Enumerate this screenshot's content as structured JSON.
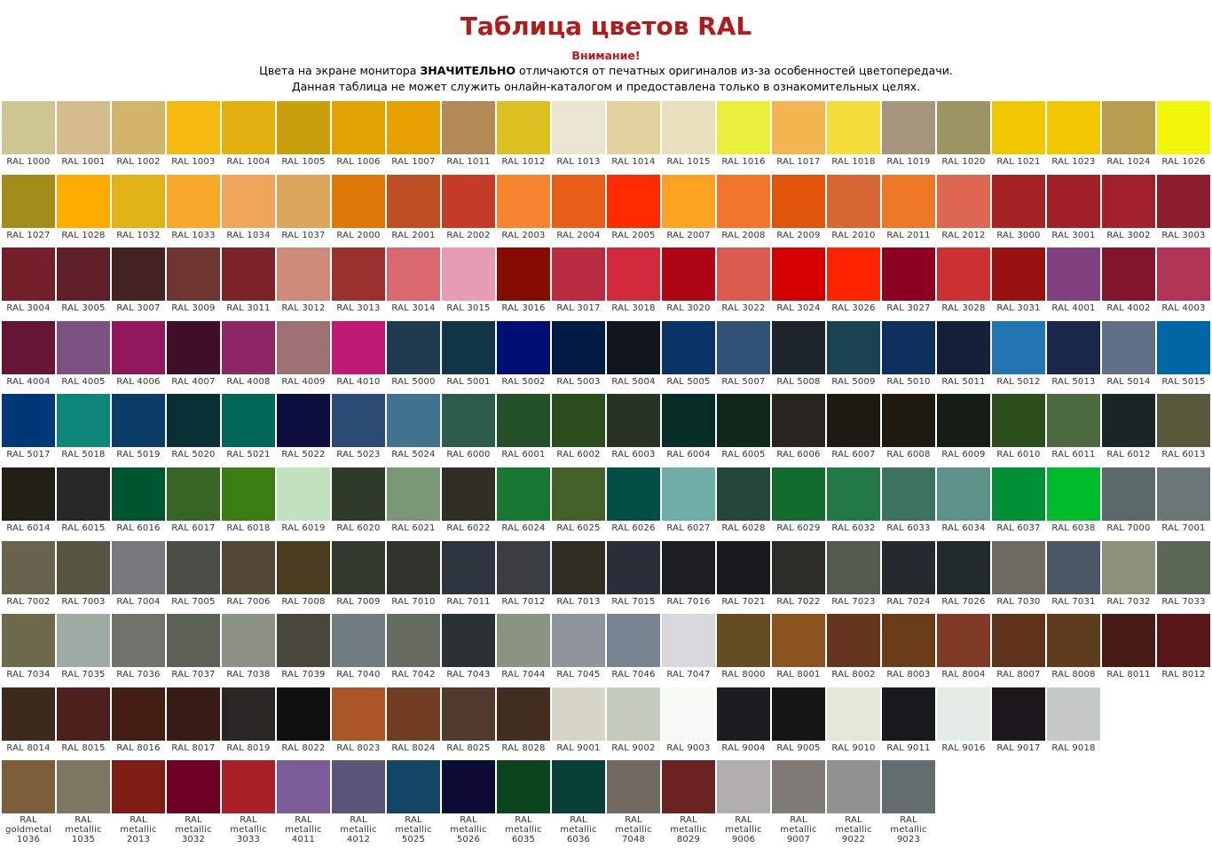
{
  "header": {
    "title": "Таблица цветов RAL",
    "warning": "Внимание!",
    "line1_before": "Цвета на экране монитора ",
    "line1_bold": "ЗНАЧИТЕЛЬНО",
    "line1_after": " отличаются от печатных оригиналов из-за особенностей цветопередачи.",
    "line2": "Данная таблица не может служить онлайн-каталогом и предоставлена только в ознакомительных целях."
  },
  "rows": [
    [
      {
        "code": "RAL 1000",
        "color": "#cdc592"
      },
      {
        "code": "RAL 1001",
        "color": "#d4bc8c"
      },
      {
        "code": "RAL 1002",
        "color": "#d3b46b"
      },
      {
        "code": "RAL 1003",
        "color": "#f6b910"
      },
      {
        "code": "RAL 1004",
        "color": "#e2b00f"
      },
      {
        "code": "RAL 1005",
        "color": "#c99e0b"
      },
      {
        "code": "RAL 1006",
        "color": "#e2a300"
      },
      {
        "code": "RAL 1007",
        "color": "#e8a000"
      },
      {
        "code": "RAL 1011",
        "color": "#b28a56"
      },
      {
        "code": "RAL 1012",
        "color": "#dac020"
      },
      {
        "code": "RAL 1013",
        "color": "#eae5d0"
      },
      {
        "code": "RAL 1014",
        "color": "#e0d19d"
      },
      {
        "code": "RAL 1015",
        "color": "#eadfbd"
      },
      {
        "code": "RAL 1016",
        "color": "#e9ef3a"
      },
      {
        "code": "RAL 1017",
        "color": "#f3b54f"
      },
      {
        "code": "RAL 1018",
        "color": "#f3dd3b"
      },
      {
        "code": "RAL 1019",
        "color": "#a5967d"
      },
      {
        "code": "RAL 1020",
        "color": "#9b9463"
      },
      {
        "code": "RAL 1021",
        "color": "#f1c800"
      },
      {
        "code": "RAL 1023",
        "color": "#f1c700"
      },
      {
        "code": "RAL 1024",
        "color": "#b99d4e"
      },
      {
        "code": "RAL 1026",
        "color": "#f3f60b"
      }
    ],
    [
      {
        "code": "RAL 1027",
        "color": "#a28c1a"
      },
      {
        "code": "RAL 1028",
        "color": "#ffab00"
      },
      {
        "code": "RAL 1032",
        "color": "#e1b216"
      },
      {
        "code": "RAL 1033",
        "color": "#f7a828"
      },
      {
        "code": "RAL 1034",
        "color": "#eda65a"
      },
      {
        "code": "RAL 1037",
        "color": "#dba55a"
      },
      {
        "code": "RAL 2000",
        "color": "#dd7808"
      },
      {
        "code": "RAL 2001",
        "color": "#bf4f23"
      },
      {
        "code": "RAL 2002",
        "color": "#c63b28"
      },
      {
        "code": "RAL 2003",
        "color": "#f6842e"
      },
      {
        "code": "RAL 2004",
        "color": "#e85d17"
      },
      {
        "code": "RAL 2005",
        "color": "#ff2a00"
      },
      {
        "code": "RAL 2007",
        "color": "#fca222"
      },
      {
        "code": "RAL 2008",
        "color": "#f2752c"
      },
      {
        "code": "RAL 2009",
        "color": "#df5409"
      },
      {
        "code": "RAL 2010",
        "color": "#d56631"
      },
      {
        "code": "RAL 2011",
        "color": "#ee7826"
      },
      {
        "code": "RAL 2012",
        "color": "#dc6650"
      },
      {
        "code": "RAL 3000",
        "color": "#a62325"
      },
      {
        "code": "RAL 3001",
        "color": "#a11f27"
      },
      {
        "code": "RAL 3002",
        "color": "#a22029"
      },
      {
        "code": "RAL 3003",
        "color": "#8b1d2d"
      }
    ],
    [
      {
        "code": "RAL 3004",
        "color": "#731e29"
      },
      {
        "code": "RAL 3005",
        "color": "#5e1f28"
      },
      {
        "code": "RAL 3007",
        "color": "#432222"
      },
      {
        "code": "RAL 3009",
        "color": "#6e3530"
      },
      {
        "code": "RAL 3011",
        "color": "#7a2428"
      },
      {
        "code": "RAL 3012",
        "color": "#cb8b78"
      },
      {
        "code": "RAL 3013",
        "color": "#9b312f"
      },
      {
        "code": "RAL 3014",
        "color": "#d9676f"
      },
      {
        "code": "RAL 3015",
        "color": "#e89bb5"
      },
      {
        "code": "RAL 3016",
        "color": "#850c02"
      },
      {
        "code": "RAL 3017",
        "color": "#b92b3e"
      },
      {
        "code": "RAL 3018",
        "color": "#d02a3c"
      },
      {
        "code": "RAL 3020",
        "color": "#ae0614"
      },
      {
        "code": "RAL 3022",
        "color": "#da5b4f"
      },
      {
        "code": "RAL 3024",
        "color": "#d40000"
      },
      {
        "code": "RAL 3026",
        "color": "#ff2400"
      },
      {
        "code": "RAL 3027",
        "color": "#8d0020"
      },
      {
        "code": "RAL 3028",
        "color": "#cd3033"
      },
      {
        "code": "RAL 3031",
        "color": "#971012"
      },
      {
        "code": "RAL 4001",
        "color": "#803f7e"
      },
      {
        "code": "RAL 4002",
        "color": "#821529"
      },
      {
        "code": "RAL 4003",
        "color": "#b13456"
      }
    ],
    [
      {
        "code": "RAL 4004",
        "color": "#651435"
      },
      {
        "code": "RAL 4005",
        "color": "#7a5282"
      },
      {
        "code": "RAL 4006",
        "color": "#92185e"
      },
      {
        "code": "RAL 4007",
        "color": "#3f0e27"
      },
      {
        "code": "RAL 4008",
        "color": "#8c2763"
      },
      {
        "code": "RAL 4009",
        "color": "#9d7074"
      },
      {
        "code": "RAL 4010",
        "color": "#bf1b73"
      },
      {
        "code": "RAL 5000",
        "color": "#203a50"
      },
      {
        "code": "RAL 5001",
        "color": "#123548"
      },
      {
        "code": "RAL 5002",
        "color": "#000e74"
      },
      {
        "code": "RAL 5003",
        "color": "#001a44"
      },
      {
        "code": "RAL 5004",
        "color": "#12161e"
      },
      {
        "code": "RAL 5005",
        "color": "#093468"
      },
      {
        "code": "RAL 5007",
        "color": "#315177"
      },
      {
        "code": "RAL 5008",
        "color": "#1d252c"
      },
      {
        "code": "RAL 5009",
        "color": "#1b4253"
      },
      {
        "code": "RAL 5010",
        "color": "#0d2f5b"
      },
      {
        "code": "RAL 5011",
        "color": "#132037"
      },
      {
        "code": "RAL 5012",
        "color": "#2176b0"
      },
      {
        "code": "RAL 5013",
        "color": "#1b284b"
      },
      {
        "code": "RAL 5014",
        "color": "#607087"
      },
      {
        "code": "RAL 5015",
        "color": "#0067a5"
      }
    ],
    [
      {
        "code": "RAL 5017",
        "color": "#003777"
      },
      {
        "code": "RAL 5018",
        "color": "#0d8577"
      },
      {
        "code": "RAL 5019",
        "color": "#0b3c68"
      },
      {
        "code": "RAL 5020",
        "color": "#083034"
      },
      {
        "code": "RAL 5021",
        "color": "#006756"
      },
      {
        "code": "RAL 5022",
        "color": "#0d0e3d"
      },
      {
        "code": "RAL 5023",
        "color": "#2b4b75"
      },
      {
        "code": "RAL 5024",
        "color": "#40728d"
      },
      {
        "code": "RAL 6000",
        "color": "#2c5c4c"
      },
      {
        "code": "RAL 6001",
        "color": "#235028"
      },
      {
        "code": "RAL 6002",
        "color": "#2b4c1d"
      },
      {
        "code": "RAL 6003",
        "color": "#283324"
      },
      {
        "code": "RAL 6004",
        "color": "#082c26"
      },
      {
        "code": "RAL 6005",
        "color": "#0f2718"
      },
      {
        "code": "RAL 6006",
        "color": "#25241f"
      },
      {
        "code": "RAL 6007",
        "color": "#1b1b13"
      },
      {
        "code": "RAL 6008",
        "color": "#1e1a12"
      },
      {
        "code": "RAL 6009",
        "color": "#161d14"
      },
      {
        "code": "RAL 6010",
        "color": "#2b4e1a"
      },
      {
        "code": "RAL 6011",
        "color": "#4b6a3f"
      },
      {
        "code": "RAL 6012",
        "color": "#1a2623"
      },
      {
        "code": "RAL 6013",
        "color": "#585a3c"
      }
    ],
    [
      {
        "code": "RAL 6014",
        "color": "#211f16"
      },
      {
        "code": "RAL 6015",
        "color": "#262925"
      },
      {
        "code": "RAL 6016",
        "color": "#005530"
      },
      {
        "code": "RAL 6017",
        "color": "#366524"
      },
      {
        "code": "RAL 6018",
        "color": "#3c7d13"
      },
      {
        "code": "RAL 6019",
        "color": "#c0e2bf"
      },
      {
        "code": "RAL 6020",
        "color": "#2f3a2a"
      },
      {
        "code": "RAL 6021",
        "color": "#7a9775"
      },
      {
        "code": "RAL 6022",
        "color": "#312e26"
      },
      {
        "code": "RAL 6024",
        "color": "#197734"
      },
      {
        "code": "RAL 6025",
        "color": "#45602b"
      },
      {
        "code": "RAL 6026",
        "color": "#034f45"
      },
      {
        "code": "RAL 6027",
        "color": "#6eada5"
      },
      {
        "code": "RAL 6028",
        "color": "#25473a"
      },
      {
        "code": "RAL 6029",
        "color": "#136b2e"
      },
      {
        "code": "RAL 6032",
        "color": "#237945"
      },
      {
        "code": "RAL 6033",
        "color": "#3c735e"
      },
      {
        "code": "RAL 6034",
        "color": "#5d9288"
      },
      {
        "code": "RAL 6037",
        "color": "#009035"
      },
      {
        "code": "RAL 6038",
        "color": "#00bb2e"
      },
      {
        "code": "RAL 7000",
        "color": "#596a68"
      },
      {
        "code": "RAL 7001",
        "color": "#6a7678"
      }
    ],
    [
      {
        "code": "RAL 7002",
        "color": "#67634e"
      },
      {
        "code": "RAL 7003",
        "color": "#575542"
      },
      {
        "code": "RAL 7004",
        "color": "#767879"
      },
      {
        "code": "RAL 7005",
        "color": "#484d46"
      },
      {
        "code": "RAL 7006",
        "color": "#524835"
      },
      {
        "code": "RAL 7008",
        "color": "#4a3c1f"
      },
      {
        "code": "RAL 7009",
        "color": "#333a2f"
      },
      {
        "code": "RAL 7010",
        "color": "#2f332c"
      },
      {
        "code": "RAL 7011",
        "color": "#2e353e"
      },
      {
        "code": "RAL 7012",
        "color": "#3a3d40"
      },
      {
        "code": "RAL 7013",
        "color": "#322d22"
      },
      {
        "code": "RAL 7015",
        "color": "#2a2e39"
      },
      {
        "code": "RAL 7016",
        "color": "#1c2025"
      },
      {
        "code": "RAL 7021",
        "color": "#171b1e"
      },
      {
        "code": "RAL 7022",
        "color": "#2c2d27"
      },
      {
        "code": "RAL 7023",
        "color": "#535b4f"
      },
      {
        "code": "RAL 7024",
        "color": "#252a2e"
      },
      {
        "code": "RAL 7026",
        "color": "#212b2d"
      },
      {
        "code": "RAL 7030",
        "color": "#6c6c62"
      },
      {
        "code": "RAL 7031",
        "color": "#4a5866"
      },
      {
        "code": "RAL 7032",
        "color": "#8c917a"
      },
      {
        "code": "RAL 7033",
        "color": "#5c6755"
      }
    ],
    [
      {
        "code": "RAL 7034",
        "color": "#6c6a4a"
      },
      {
        "code": "RAL 7035",
        "color": "#9eaba2"
      },
      {
        "code": "RAL 7036",
        "color": "#6f736c"
      },
      {
        "code": "RAL 7037",
        "color": "#5b6157"
      },
      {
        "code": "RAL 7038",
        "color": "#8c9185"
      },
      {
        "code": "RAL 7039",
        "color": "#48473c"
      },
      {
        "code": "RAL 7040",
        "color": "#707c7f"
      },
      {
        "code": "RAL 7042",
        "color": "#656b60"
      },
      {
        "code": "RAL 7043",
        "color": "#2b3130"
      },
      {
        "code": "RAL 7044",
        "color": "#8b9480"
      },
      {
        "code": "RAL 7045",
        "color": "#8e939c"
      },
      {
        "code": "RAL 7046",
        "color": "#778391"
      },
      {
        "code": "RAL 7047",
        "color": "#d7d7dc"
      },
      {
        "code": "RAL 8000",
        "color": "#654d22"
      },
      {
        "code": "RAL 8001",
        "color": "#8a521c"
      },
      {
        "code": "RAL 8002",
        "color": "#65351e"
      },
      {
        "code": "RAL 8003",
        "color": "#6a3b17"
      },
      {
        "code": "RAL 8004",
        "color": "#7e3a24"
      },
      {
        "code": "RAL 8007",
        "color": "#5f3319"
      },
      {
        "code": "RAL 8008",
        "color": "#5f3b1e"
      },
      {
        "code": "RAL 8011",
        "color": "#471b14"
      },
      {
        "code": "RAL 8012",
        "color": "#581617"
      }
    ],
    [
      {
        "code": "RAL 8014",
        "color": "#3e2a1d"
      },
      {
        "code": "RAL 8015",
        "color": "#4c211d"
      },
      {
        "code": "RAL 8016",
        "color": "#421d12"
      },
      {
        "code": "RAL 8017",
        "color": "#361c15"
      },
      {
        "code": "RAL 8019",
        "color": "#2a2623"
      },
      {
        "code": "RAL 8022",
        "color": "#0f0f10"
      },
      {
        "code": "RAL 8023",
        "color": "#ab5627"
      },
      {
        "code": "RAL 8024",
        "color": "#713e24"
      },
      {
        "code": "RAL 8025",
        "color": "#503a2d"
      },
      {
        "code": "RAL 8028",
        "color": "#412e20"
      },
      {
        "code": "RAL 9001",
        "color": "#d5d6c5"
      },
      {
        "code": "RAL 9002",
        "color": "#c4cac0"
      },
      {
        "code": "RAL 9003",
        "color": "#f7f9f4"
      },
      {
        "code": "RAL 9004",
        "color": "#1c1c21"
      },
      {
        "code": "RAL 9005",
        "color": "#141515"
      },
      {
        "code": "RAL 9010",
        "color": "#e4e7d8"
      },
      {
        "code": "RAL 9011",
        "color": "#18191d"
      },
      {
        "code": "RAL 9016",
        "color": "#e4ebe4"
      },
      {
        "code": "RAL 9017",
        "color": "#1c181b"
      },
      {
        "code": "RAL 9018",
        "color": "#c4c9c5"
      }
    ],
    [
      {
        "code": "RAL goldmetal 1036",
        "color": "#7c5f3a"
      },
      {
        "code": "RAL metallic 1035",
        "color": "#7b7660"
      },
      {
        "code": "RAL metallic 2013",
        "color": "#7d1d13"
      },
      {
        "code": "RAL metallic 3032",
        "color": "#6e0021"
      },
      {
        "code": "RAL metallic 3033",
        "color": "#a81f26"
      },
      {
        "code": "RAL metallic 4011",
        "color": "#7a5c98"
      },
      {
        "code": "RAL metallic 4012",
        "color": "#5b5577"
      },
      {
        "code": "RAL metallic 5025",
        "color": "#144765"
      },
      {
        "code": "RAL metallic 5026",
        "color": "#0e0b36"
      },
      {
        "code": "RAL metallic 6035",
        "color": "#0b4520"
      },
      {
        "code": "RAL metallic 6036",
        "color": "#083f36"
      },
      {
        "code": "RAL metallic 7048",
        "color": "#716a61"
      },
      {
        "code": "RAL metallic 8029",
        "color": "#6b2220"
      },
      {
        "code": "RAL metallic 9006",
        "color": "#b1aeb0"
      },
      {
        "code": "RAL metallic 9007",
        "color": "#807b77"
      },
      {
        "code": "RAL metallic 9022",
        "color": "#8f9291"
      },
      {
        "code": "RAL metallic 9023",
        "color": "#646d6d"
      }
    ]
  ]
}
